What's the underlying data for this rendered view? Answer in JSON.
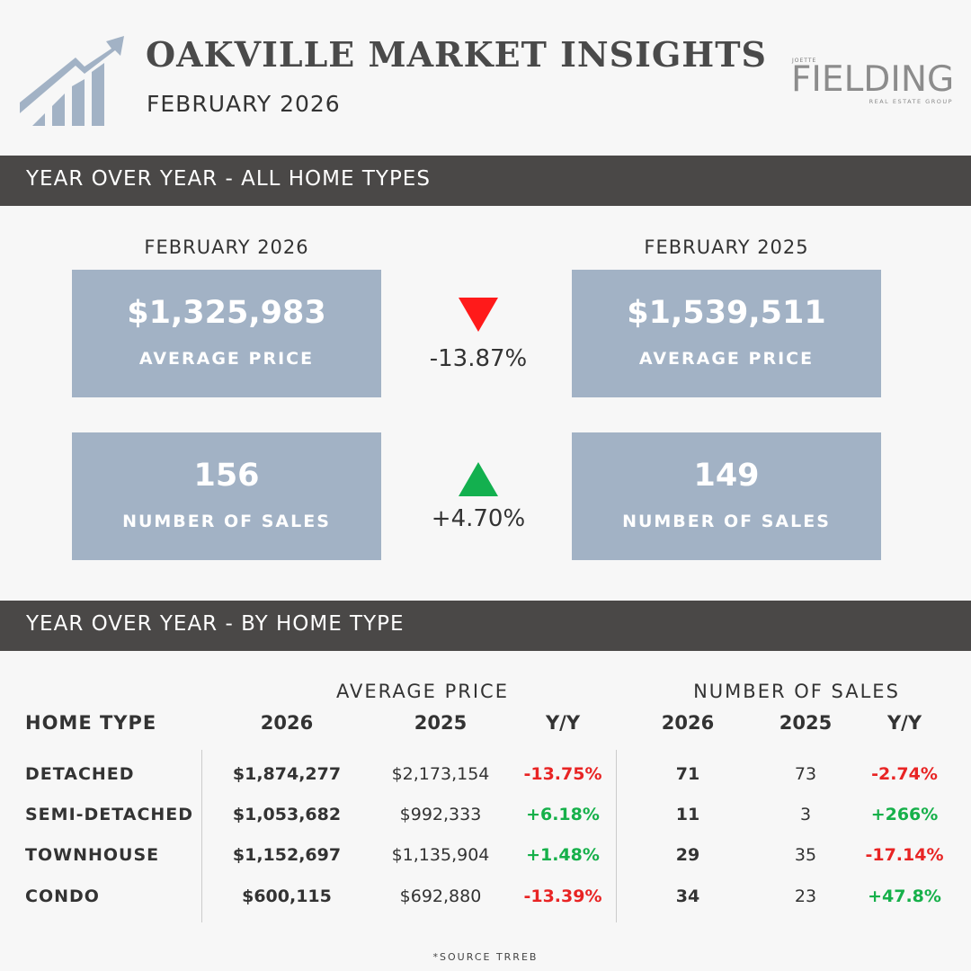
{
  "header": {
    "title": "OAKVILLE MARKET INSIGHTS",
    "subtitle": "FEBRUARY 2026",
    "logo_icon": "growth-chart-icon",
    "brand": {
      "top": "JOETTE",
      "main": "FIELDING",
      "sub": "REAL ESTATE GROUP"
    }
  },
  "all_types": {
    "section_title": "YEAR OVER YEAR - ALL HOME TYPES",
    "current_label": "FEBRUARY 2026",
    "previous_label": "FEBRUARY 2025",
    "price": {
      "current": "$1,325,983",
      "previous": "$1,539,511",
      "label": "AVERAGE PRICE",
      "change": "-13.87%",
      "direction": "down"
    },
    "sales": {
      "current": "156",
      "previous": "149",
      "label": "NUMBER OF SALES",
      "change": "+4.70%",
      "direction": "up"
    }
  },
  "by_type": {
    "section_title": "YEAR OVER YEAR - BY HOME TYPE",
    "group_price": "AVERAGE PRICE",
    "group_sales": "NUMBER OF SALES",
    "columns": {
      "type": "HOME TYPE",
      "price_2026": "2026",
      "price_2025": "2025",
      "price_yy": "Y/Y",
      "sales_2026": "2026",
      "sales_2025": "2025",
      "sales_yy": "Y/Y"
    },
    "rows": [
      {
        "type": "DETACHED",
        "price_2026": "$1,874,277",
        "price_2025": "$2,173,154",
        "price_yy": "-13.75%",
        "sales_2026": "71",
        "sales_2025": "73",
        "sales_yy": "-2.74%"
      },
      {
        "type": "SEMI-DETACHED",
        "price_2026": "$1,053,682",
        "price_2025": "$992,333",
        "price_yy": "+6.18%",
        "sales_2026": "11",
        "sales_2025": "3",
        "sales_yy": "+266%"
      },
      {
        "type": "TOWNHOUSE",
        "price_2026": "$1,152,697",
        "price_2025": "$1,135,904",
        "price_yy": "+1.48%",
        "sales_2026": "29",
        "sales_2025": "35",
        "sales_yy": "-17.14%"
      },
      {
        "type": "CONDO",
        "price_2026": "$600,115",
        "price_2025": "$692,880",
        "price_yy": "-13.39%",
        "sales_2026": "34",
        "sales_2025": "23",
        "sales_yy": "+47.8%"
      }
    ]
  },
  "footer": {
    "source": "*SOURCE TRREB"
  },
  "colors": {
    "section_bar": "#4a4847",
    "stat_box": "#a2b2c5",
    "positive": "#16b04a",
    "negative": "#e82424",
    "arrow_up": "#13b04f",
    "arrow_down": "#ff1a1a"
  }
}
